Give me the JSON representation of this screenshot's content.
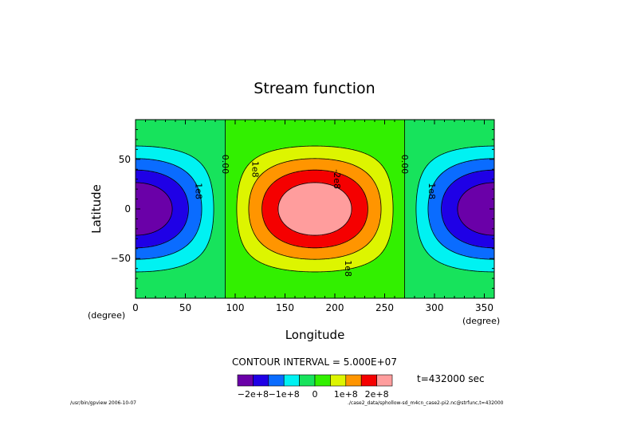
{
  "chart_data": {
    "type": "contour",
    "title": "Stream function",
    "xlabel": "Longitude",
    "ylabel": "Latitude",
    "x_unit": "(degree)",
    "y_unit": "(degree)",
    "xlim": [
      0,
      360
    ],
    "ylim": [
      -90,
      90
    ],
    "xticks": [
      0,
      50,
      100,
      150,
      200,
      250,
      300,
      350
    ],
    "yticks": [
      -50,
      0,
      50
    ],
    "field": "psi(lon,lat) = -2.5e8 * cos(lon) * cos(lat)^2",
    "amplitude": 250000000,
    "contour_interval_label": "CONTOUR INTERVAL = 5.000E+07",
    "contour_interval": 50000000,
    "contour_levels": [
      -200000000,
      -150000000,
      -100000000,
      -50000000,
      0,
      50000000,
      100000000,
      150000000,
      200000000
    ],
    "contour_labels": [
      {
        "text": "0.00",
        "lon": 90,
        "lat": 45
      },
      {
        "text": "0.00",
        "lon": 270,
        "lat": 45
      },
      {
        "text": "1e8",
        "lon": 120,
        "lat": 40
      },
      {
        "text": "-2e8",
        "lon": 202,
        "lat": 30
      },
      {
        "text": "1e8",
        "lon": 213,
        "lat": -60
      },
      {
        "text": "1e8",
        "lon": 63,
        "lat": 18
      },
      {
        "text": "1e8",
        "lon": 297,
        "lat": 18
      }
    ],
    "colorbar": {
      "colors": [
        "#6a00a8",
        "#1f00e6",
        "#0a6cff",
        "#00f2f2",
        "#17e35c",
        "#32f000",
        "#ddf500",
        "#ff9500",
        "#f50000",
        "#ff9d9d"
      ],
      "tick_labels": [
        "-2e+8",
        "-1e+8",
        "0",
        "1e+8",
        "2e+8"
      ]
    },
    "time_label": "t=432000 sec",
    "grid": false
  },
  "footer": {
    "left": "/usr/bin/gpview  2006-10-07",
    "right": "./case2_data/sphollow-sd_m4cn_case2-pi2.nc@strfunc,t=432000"
  }
}
